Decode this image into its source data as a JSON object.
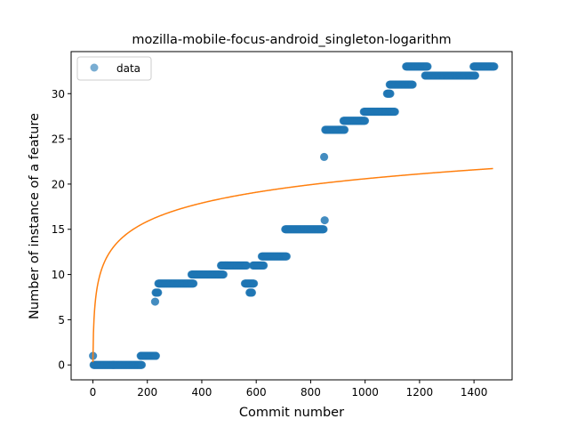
{
  "chart_data": {
    "type": "scatter",
    "title": "mozilla-mobile-focus-android_singleton-logarithm",
    "xlabel": "Commit number",
    "ylabel": "Number of instance of a feature",
    "xlim": [
      -80,
      1540
    ],
    "ylim": [
      -1.65,
      34.65
    ],
    "xticks": [
      0,
      200,
      400,
      600,
      800,
      1000,
      1200,
      1400
    ],
    "yticks": [
      0,
      5,
      10,
      15,
      20,
      25,
      30
    ],
    "grid": false,
    "legend": {
      "placement": "top-left",
      "entries": [
        "data"
      ]
    },
    "colors": {
      "data": "#1f77b4",
      "fit": "#ff7f0e"
    },
    "series": [
      {
        "name": "data",
        "kind": "scatter",
        "segments": [
          {
            "x_start": 0,
            "x_end": 1,
            "y": 1
          },
          {
            "x_start": 2,
            "x_end": 180,
            "y": 0
          },
          {
            "x_start": 175,
            "x_end": 232,
            "y": 1
          },
          {
            "x_start": 228,
            "x_end": 229,
            "y": 7
          },
          {
            "x_start": 230,
            "x_end": 240,
            "y": 8
          },
          {
            "x_start": 240,
            "x_end": 370,
            "y": 9
          },
          {
            "x_start": 362,
            "x_end": 480,
            "y": 10
          },
          {
            "x_start": 470,
            "x_end": 565,
            "y": 11
          },
          {
            "x_start": 558,
            "x_end": 592,
            "y": 9
          },
          {
            "x_start": 575,
            "x_end": 585,
            "y": 8
          },
          {
            "x_start": 588,
            "x_end": 628,
            "y": 11
          },
          {
            "x_start": 620,
            "x_end": 712,
            "y": 12
          },
          {
            "x_start": 706,
            "x_end": 848,
            "y": 15
          },
          {
            "x_start": 849,
            "x_end": 850,
            "y": 23
          },
          {
            "x_start": 851,
            "x_end": 852,
            "y": 16
          },
          {
            "x_start": 853,
            "x_end": 925,
            "y": 26
          },
          {
            "x_start": 920,
            "x_end": 1000,
            "y": 27
          },
          {
            "x_start": 995,
            "x_end": 1110,
            "y": 28
          },
          {
            "x_start": 1080,
            "x_end": 1093,
            "y": 30
          },
          {
            "x_start": 1090,
            "x_end": 1175,
            "y": 31
          },
          {
            "x_start": 1150,
            "x_end": 1230,
            "y": 33
          },
          {
            "x_start": 1220,
            "x_end": 1405,
            "y": 32
          },
          {
            "x_start": 1398,
            "x_end": 1475,
            "y": 33
          }
        ]
      },
      {
        "name": "",
        "kind": "line",
        "model": "y = a + b*ln(x+1)",
        "a": 0.31,
        "b": 2.935,
        "x_range": [
          0,
          1470
        ]
      }
    ]
  }
}
